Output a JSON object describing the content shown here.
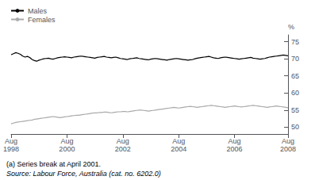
{
  "chart_data": {
    "type": "line",
    "y_label": "%",
    "annotations": [
      "(a) Series break at April 2001.",
      "Source: Labour Force, Australia (cat. no. 6202.0)"
    ],
    "categories": [
      "Aug\n1998",
      null,
      null,
      null,
      null,
      null,
      null,
      null,
      null,
      null,
      null,
      null,
      null,
      null,
      null,
      null,
      null,
      null,
      null,
      null,
      null,
      null,
      null,
      null,
      "Aug\n2000",
      null,
      null,
      null,
      null,
      null,
      null,
      null,
      null,
      null,
      null,
      null,
      null,
      null,
      null,
      null,
      null,
      null,
      null,
      null,
      null,
      null,
      null,
      null,
      "Aug\n2002",
      null,
      null,
      null,
      null,
      null,
      null,
      null,
      null,
      null,
      null,
      null,
      null,
      null,
      null,
      null,
      null,
      null,
      null,
      null,
      null,
      null,
      null,
      null,
      "Aug\n2004",
      null,
      null,
      null,
      null,
      null,
      null,
      null,
      null,
      null,
      null,
      null,
      null,
      null,
      null,
      null,
      null,
      null,
      null,
      null,
      null,
      null,
      null,
      null,
      "Aug\n2006",
      null,
      null,
      null,
      null,
      null,
      null,
      null,
      null,
      null,
      null,
      null,
      null,
      null,
      null,
      null,
      null,
      null,
      null,
      null,
      null,
      null,
      null,
      "Aug\n2008"
    ],
    "series": [
      {
        "name": "Males",
        "color": "#000000",
        "values": [
          71.2,
          71.5,
          71.8,
          71.6,
          71.3,
          70.8,
          70.5,
          70.7,
          70.4,
          69.8,
          69.5,
          69.3,
          69.6,
          69.8,
          70.0,
          70.1,
          70.2,
          70.0,
          69.9,
          70.1,
          70.3,
          70.4,
          70.5,
          70.6,
          70.5,
          70.4,
          70.3,
          70.5,
          70.6,
          70.7,
          70.8,
          70.7,
          70.6,
          70.5,
          70.4,
          70.3,
          70.2,
          70.4,
          70.5,
          70.6,
          70.7,
          70.5,
          70.4,
          70.3,
          70.4,
          70.5,
          70.3,
          70.1,
          70.0,
          69.9,
          69.8,
          70.0,
          70.1,
          70.2,
          70.3,
          70.1,
          70.0,
          69.9,
          69.8,
          69.7,
          69.9,
          70.0,
          70.1,
          70.0,
          69.9,
          69.8,
          69.7,
          69.6,
          69.8,
          69.9,
          70.0,
          70.1,
          70.0,
          69.9,
          69.8,
          69.7,
          69.6,
          69.7,
          69.8,
          70.0,
          70.2,
          70.3,
          70.4,
          70.5,
          70.6,
          70.7,
          70.5,
          70.3,
          70.2,
          70.1,
          70.3,
          70.4,
          70.5,
          70.4,
          70.3,
          70.2,
          70.1,
          70.0,
          69.9,
          70.0,
          70.1,
          70.2,
          70.3,
          70.4,
          70.2,
          70.1,
          70.0,
          69.9,
          70.0,
          70.1,
          70.3,
          70.5,
          70.6,
          70.7,
          70.8,
          70.9,
          71.0,
          71.1,
          71.0,
          70.9
        ]
      },
      {
        "name": "Females",
        "color": "#aaaaaa",
        "values": [
          51.0,
          51.2,
          51.4,
          51.5,
          51.6,
          51.7,
          51.8,
          51.9,
          52.0,
          52.1,
          52.3,
          52.4,
          52.5,
          52.6,
          52.7,
          52.8,
          52.9,
          53.0,
          53.1,
          53.0,
          52.9,
          52.8,
          52.9,
          53.0,
          53.1,
          53.2,
          53.3,
          53.4,
          53.5,
          53.5,
          53.6,
          53.7,
          53.8,
          53.9,
          54.0,
          54.1,
          54.2,
          54.2,
          54.3,
          54.3,
          54.4,
          54.4,
          54.3,
          54.2,
          54.3,
          54.4,
          54.5,
          54.5,
          54.6,
          54.6,
          54.5,
          54.6,
          54.7,
          54.8,
          54.9,
          55.0,
          55.0,
          54.9,
          54.8,
          54.7,
          54.8,
          54.9,
          55.0,
          55.1,
          55.2,
          55.3,
          55.4,
          55.5,
          55.6,
          55.7,
          55.8,
          55.7,
          55.6,
          55.7,
          55.8,
          55.9,
          56.0,
          56.1,
          56.0,
          55.9,
          55.8,
          55.9,
          56.0,
          56.1,
          56.2,
          56.3,
          56.4,
          56.3,
          56.2,
          56.1,
          56.0,
          55.9,
          55.8,
          55.9,
          56.0,
          56.1,
          56.2,
          56.1,
          56.0,
          55.9,
          56.0,
          56.1,
          56.2,
          56.3,
          56.4,
          56.3,
          56.2,
          56.1,
          56.0,
          55.9,
          55.8,
          55.9,
          56.0,
          56.1,
          56.2,
          56.1,
          56.0,
          55.9,
          55.8,
          55.7
        ]
      }
    ],
    "ylim": [
      48,
      77
    ],
    "yticks": [
      50,
      55,
      60,
      65,
      70,
      75
    ],
    "grid": false,
    "legend": "top left"
  }
}
